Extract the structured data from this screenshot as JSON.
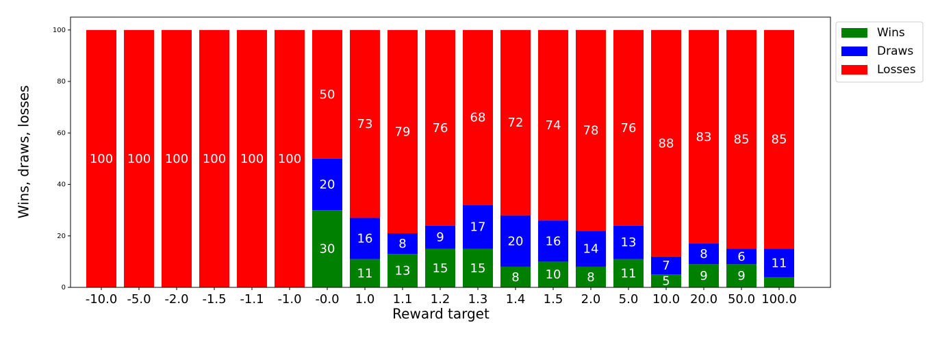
{
  "chart_data": {
    "type": "stacked_bar",
    "x_label": "Reward target",
    "y_label": "Wins, draws, losses",
    "categories": [
      "-10.0",
      "-5.0",
      "-2.0",
      "-1.5",
      "-1.1",
      "-1.0",
      "-0.0",
      "1.0",
      "1.1",
      "1.2",
      "1.3",
      "1.4",
      "1.5",
      "2.0",
      "5.0",
      "10.0",
      "20.0",
      "50.0",
      "100.0"
    ],
    "series": [
      {
        "name": "Wins",
        "color": "#008000",
        "values": [
          0,
          0,
          0,
          0,
          0,
          0,
          30,
          11,
          13,
          15,
          15,
          8,
          10,
          8,
          11,
          5,
          9,
          9,
          4
        ],
        "value_labels": [
          null,
          null,
          null,
          null,
          null,
          null,
          "30",
          "11",
          "13",
          "15",
          "15",
          "8",
          "10",
          "8",
          "11",
          "5",
          "9",
          "9",
          null
        ]
      },
      {
        "name": "Draws",
        "color": "#0000ff",
        "values": [
          0,
          0,
          0,
          0,
          0,
          0,
          20,
          16,
          8,
          9,
          17,
          20,
          16,
          14,
          13,
          7,
          8,
          6,
          11
        ],
        "value_labels": [
          null,
          null,
          null,
          null,
          null,
          null,
          "20",
          "16",
          "8",
          "9",
          "17",
          "20",
          "16",
          "14",
          "13",
          "7",
          "8",
          "6",
          "11"
        ]
      },
      {
        "name": "Losses",
        "color": "#ff0000",
        "values": [
          100,
          100,
          100,
          100,
          100,
          100,
          50,
          73,
          79,
          76,
          68,
          72,
          74,
          78,
          76,
          88,
          83,
          85,
          85
        ],
        "value_labels": [
          "100",
          "100",
          "100",
          "100",
          "100",
          "100",
          "50",
          "73",
          "79",
          "76",
          "68",
          "72",
          "74",
          "78",
          "76",
          "88",
          "83",
          "85",
          "85"
        ]
      }
    ],
    "ylim": [
      0,
      105
    ],
    "yticks": [
      0,
      20,
      40,
      60,
      80,
      100
    ],
    "legend": "upper-right-outside"
  }
}
